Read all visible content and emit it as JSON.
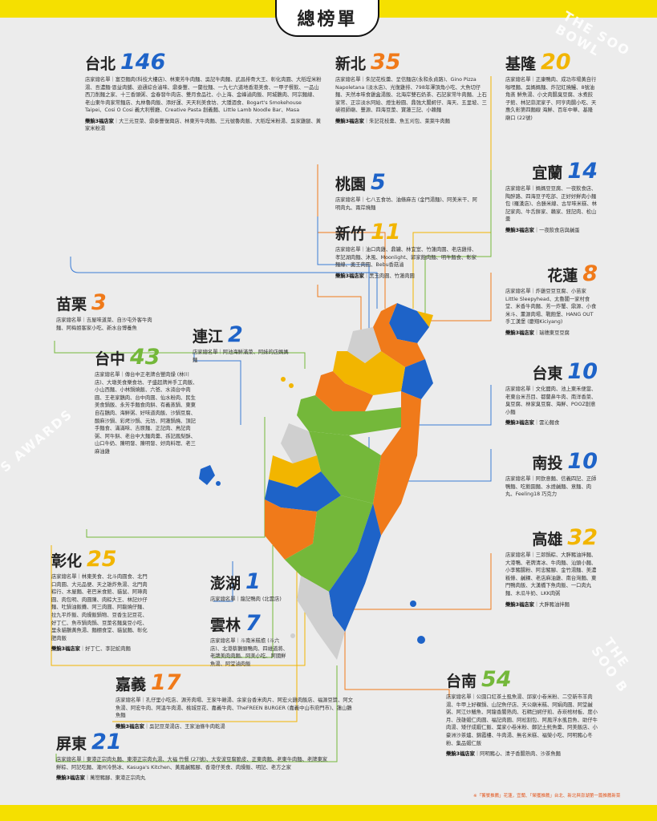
{
  "title": "總榜單",
  "deco_texts": [
    "THE SOO BOWL",
    "S AWARDS",
    "THE SOO B"
  ],
  "labels": {
    "stores": "店家總名單",
    "bib": "樂餉3福店家"
  },
  "regions": {
    "taipei": {
      "name": "台北",
      "count": "146",
      "stores": "店家總名單｜富亞麵肉(科技大樓店)、林東芳牛肉麵、吳記牛肉麵、武昌排骨大王、彰化肉圓、大稻埕米粉湯、吾濃麵‧恩益肉舖、迪通綜合滷味、鼎泰豐、一蘭拉麵、一九七六道地香港美食、一甲子餐飲、一品山西刀削麵之家、十三香頭粥、金春發牛肉店、雙月食品社、小上海、金峰滷肉飯、阿城鵝肉、阿宗麵線、老山東牛肉家常麵店、丸林魯肉飯、添好運、天天利美食坊、大隱酒食、Bogart's Smokehouse Taipei、Cosi O Cosi 義大利餐廳、Creative Pasta 創義麵、Little Lamb Noodle Bar、Masa",
      "bib": "大三元豆菜、鼎泰豐復興店、林東芳牛肉麵、三元號魯肉飯、大稻埕米粉湯、吳家雞腿、黃家米粉湯"
    },
    "newtaipei": {
      "name": "新北",
      "count": "35",
      "stores": "店家總名單｜朱記花枝羹、呈信麵店(永和永貞路)、Gino Pizza Napoletana (淡水店)、光復雞排、798年澤頂角小吃、大魚切仔麵、天然本味食雞盒湯飯、北海岸雙石奶茶、石記家常牛肉麵、上石家常、正宗淡水阿給、燈生粉圓、鼎強大腸蚵仔、海天、五里坡、三峽祖師廟、豐源、四海豆漿、寶蓮三記、小賴麵",
      "bib": "朱記花枝羹、魚五刈包、萊萊牛肉麵"
    },
    "keelung": {
      "name": "基隆",
      "count": "20",
      "stores": "店家總名單｜正康鴨肉、成功市場黃自行咖哩麵、吳媽媽麵、炸記紅燒鰻、8號油角蒸 鮮魚湯、小文肉腸臭豆腐、水煮餃子館、林記蒜泥家子、阿亨肉腸小吃、天惠久彰第四麵線 海鮮、百年中華、基隆廟口 (22號)",
      "bib": ""
    },
    "yilan": {
      "name": "宜蘭",
      "count": "14",
      "stores": "店家總名單｜媽媽豆豆腐、一夜飲食店、陶醉路、四海豆子吃部、正好好鮮肉小麵包 (羅漢店)、合勝米線、古早味米糕、林記家肉、牛舌餅家、賴家、鈕記肉、松山羹",
      "bib": "一夜飲食店與鹹蛋"
    },
    "taoyuan": {
      "name": "桃園",
      "count": "5",
      "stores": "店家總名單｜七八五食坊、油條麻吉 (金門湯麵)、阿美米干、阿明肉丸、兩岸燒麵",
      "bib": ""
    },
    "hsinchu": {
      "name": "新竹",
      "count": "11",
      "stores": "店家總名單｜油口肉雞、鼎罐、林宜室、竹蓮肉圓、老店雞排、孝記湖肉麵、沐風、Moonlight、郭家飽肉麵、明牛麵食、彰家麵線、奧王肉圓、Bebu香菇滷",
      "bib": "黑玉肉圓、竹蓮肉圓"
    },
    "miaoli": {
      "name": "苗栗",
      "count": "3",
      "stores": "店家總名單｜吉屋味道菜、自沙屯外客牛肉麵、阿梅姐客家小吃、新水台博養魚",
      "bib": ""
    },
    "matsu": {
      "name": "連江",
      "count": "2",
      "stores": "店家總名單｜阿池海鮮滿菜、阿妹的店媽媽麵",
      "bib": ""
    },
    "penghu": {
      "name": "澎湖",
      "count": "1",
      "stores": "店家總名單｜龍記鴨肉 (北雲店)",
      "bib": ""
    },
    "hualien": {
      "name": "花蓮",
      "count": "8",
      "stores": "店家總名單｜炸雞豆豆豆腐、小苗家 Little Sleepyhead、太魯閣一家村食堂、米香牛肉麵、芳一炸蟹、鼎源、小食米斗、薰源肉場、戰飽堡、HANG OUT 手工漢堡 (慶翔Kiciyang)",
      "bib": "瑞穗東豆豆腐"
    },
    "taichung": {
      "name": "台中",
      "count": "43",
      "stores": "店家總名單｜傳台中正老牌合豐肉燥 (林川店)、大墩美食樂食坊、子盛超牌丼手工肉飯、小山西麵、小林鍋燒飯、六爸、水湳台中肉圓、王老家鵝肉、台中肉圓、仙水粉肉、民生美食鍋飯、永芳手麵食肉餅、有義蒸鍋、東東自在鵝肉、海鮮粥、好味道肉飯、沙鍋豆腐、酸麻沙鍋、彩烤沙鍋、元坊、阿蓮鍋燒、頂記手麵食、滿滿味、吉原麵、正記肉、鳥記肉粥、阿牛餅、老台中大麵肉羹、孫記鳳梨酥、山口牛奶、陳明發、陳明發、好肉料理、老三麻油雞",
      "bib": ""
    },
    "changhua": {
      "name": "彰化",
      "count": "25",
      "stores": "店家總名單｜林東美食、北斗肉圓食、北門口肉圓、大元品便、天之雄炸魚湯、北門肉粽行、木屋麵、老巴米食館、貓鼠、阿璋肉圓、肉包明、肉圓陳、肉粽大王、林記炒仔麵、吐鍋油飯攤、阿三肉圓、阿龍燒仔麵、拉九平炸飯、肉燥飯鍋物、豆香生記豆花、好丁仁、魚市鍋肉鍋、豆漿名麵臭豆小吃、里永貓鵝黃魚湯、麵棚食堂、貓鼠麵、彰化肥肉飯",
      "bib": "好丁仁、李記蛇肉麵"
    },
    "yunlin": {
      "name": "雲林",
      "count": "7",
      "stores": "店家總名單｜斗南米糕擔 (斗六店)、北港蔡鵝頭鴨肉、四維道將、老牌美肉肉麵、阿美小吃、阿國鮮魚湯、阿堂滷肉飯",
      "bib": ""
    },
    "chiayi": {
      "name": "嘉義",
      "count": "17",
      "stores": "店家總名單｜孔仔里小吃店、源芳肉場、王家牛雜湯、余家台香米肉片、阿宏火雞肉飯店、福源豆漿、阿文魚湯、阿宏牛肉、阿溫牛肉湯、桃城豆花、嘉義牛肉、TheFREEN BURGER (嘉義中山市府門市)、蓮山鵝魚麵",
      "bib": "吳記豆菜湯店、王家油條牛肉乾湯"
    },
    "pingtung": {
      "name": "屏東",
      "count": "21",
      "stores": "店家總名單｜東港正宗肉丸麵、東港正宗肉丸湯、大福 竹餐 (27號)、大安波豆腐脆皮、正東肉麵、老東牛肉麵、老牌東家鮮粽、阿記吃麵、潮州冷熱冰、Kasuga's Kitchen、黃鳳鹹豬腳、香港仔美食、肉燥飯、明記、老方之家",
      "bib": "萬巒豬腳、東港正宗肉丸"
    },
    "taitung": {
      "name": "台東",
      "count": "10",
      "stores": "店家總名單｜文化鹽肉、池上東禾便當、老東台米苔目、都蘭鼻牛肉、南洋香菜、臭豆腐、林家臭豆腐、海鮮、POOZ創意小麵",
      "bib": "雲沁麵食"
    },
    "nantou": {
      "name": "南投",
      "count": "10",
      "stores": "店家總名單｜阿欽意麵、信義四記、正師鴨麵、吃飽園麵、水燈鹹麵、意麵、肉丸、Feeling18 巧克力",
      "bib": ""
    },
    "kaohsiung": {
      "name": "高雄",
      "count": "32",
      "stores": "店家總名單｜三郎鍋粽、大胖豬油拌麵、大港鴨、老牌清冰、牛肉麵、汕頭小麵、小李豬腸粉、阿忠豬腳、金竹湯麵、美濃粄條、鹹粿、老店麻油雞、南台灣麵、東門鴨肉飯、大漢橋下魚肉飯、一口肉丸麵、木瓜牛奶、LKK肉粥",
      "bib": "大胖豬油拌麵"
    },
    "tainan": {
      "name": "台南",
      "count": "54",
      "stores": "店家總名單｜公園口紅茶土虱魚湯、邱家小卷米粉、二空新市羊肉湯、牛甲上好粿鍋、山記魚仔店、天公廟米糕、阿娟肉圓、阿堂鹹粥、阿江炒鱔魚、阿龍香腸熟肉、石精臼蚵仔煎、赤崁棺材板、度小月、茂雄蝦仁肉圓、福記肉圓、阿松割包、阿鳳浮水虱目魚、助仔牛肉湯、矮仔成蝦仁飯、葉家小卷米粉、鄭記土魠魚羹、阿美飯店、小豪洲沙茶爐、錦霞樓、牛肉湯、無名米糕、福榮小吃、阿明豬心冬粉、集品蝦仁飯",
      "bib": "阿明豬心、清子香腸熟肉、沙茶魚麵"
    }
  },
  "footnote": "※「饕餮推薦」花蓮，宜蘭、「榮獲推薦」台北、新北與澎湖第一篇推薦新菜"
}
